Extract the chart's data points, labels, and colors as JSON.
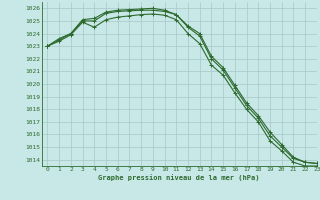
{
  "title": "Graphe pression niveau de la mer (hPa)",
  "background_color": "#c8e8e8",
  "grid_color": "#a8c8c8",
  "line_color": "#2d6a2d",
  "xlim": [
    -0.5,
    23
  ],
  "ylim": [
    1013.5,
    1026.5
  ],
  "yticks": [
    1014,
    1015,
    1016,
    1017,
    1018,
    1019,
    1020,
    1021,
    1022,
    1023,
    1024,
    1025,
    1026
  ],
  "xticks": [
    0,
    1,
    2,
    3,
    4,
    5,
    6,
    7,
    8,
    9,
    10,
    11,
    12,
    13,
    14,
    15,
    16,
    17,
    18,
    19,
    20,
    21,
    22,
    23
  ],
  "series1": [
    1023.0,
    1023.6,
    1024.0,
    1025.0,
    1025.0,
    1025.6,
    1025.75,
    1025.8,
    1025.85,
    1025.85,
    1025.75,
    1025.5,
    1024.6,
    1024.0,
    1022.2,
    1021.3,
    1019.9,
    1018.5,
    1017.5,
    1016.2,
    1015.2,
    1014.2,
    1013.8,
    1013.7
  ],
  "series2": [
    1023.0,
    1023.5,
    1024.0,
    1025.1,
    1025.2,
    1025.7,
    1025.85,
    1025.9,
    1025.95,
    1026.0,
    1025.85,
    1025.5,
    1024.5,
    1023.8,
    1022.0,
    1021.1,
    1019.7,
    1018.3,
    1017.3,
    1015.9,
    1015.0,
    1014.1,
    1013.8,
    1013.7
  ],
  "series3": [
    1023.0,
    1023.4,
    1023.9,
    1024.9,
    1024.5,
    1025.1,
    1025.3,
    1025.4,
    1025.5,
    1025.55,
    1025.45,
    1025.1,
    1024.0,
    1023.2,
    1021.5,
    1020.7,
    1019.3,
    1018.0,
    1017.0,
    1015.5,
    1014.7,
    1013.8,
    1013.5,
    1013.5
  ]
}
